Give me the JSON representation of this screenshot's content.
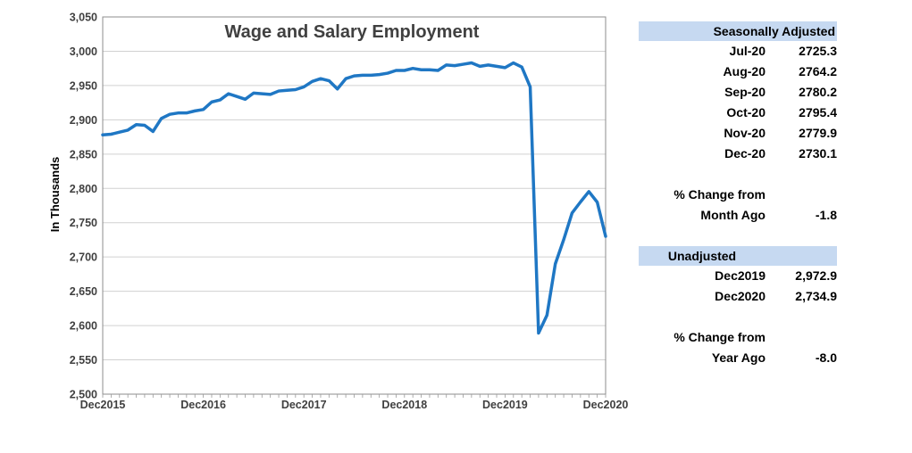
{
  "chart_data": {
    "type": "line",
    "title": "Wage and Salary Employment",
    "ylabel": "In Thousands",
    "xlabel": "",
    "ylim": [
      2500,
      3050
    ],
    "yticks": [
      2500,
      2550,
      2600,
      2650,
      2700,
      2750,
      2800,
      2850,
      2900,
      2950,
      3000,
      3050
    ],
    "ytick_labels": [
      "2,500",
      "2,550",
      "2,600",
      "2,650",
      "2,700",
      "2,750",
      "2,800",
      "2,850",
      "2,900",
      "2,950",
      "3,000",
      "3,050"
    ],
    "xtick_labels": [
      "Dec2015",
      "Dec2016",
      "Dec2017",
      "Dec2018",
      "Dec2019",
      "Dec2020"
    ],
    "grid": true,
    "color": "#1f77c4",
    "series": [
      {
        "x_start": "Dec2015",
        "x_end": "Dec2020",
        "values": [
          2878,
          2879,
          2882,
          2885,
          2893,
          2892,
          2883,
          2902,
          2908,
          2910,
          2910,
          2913,
          2915,
          2926,
          2929,
          2938,
          2934,
          2930,
          2939,
          2938,
          2937,
          2942,
          2943,
          2944,
          2948,
          2956,
          2960,
          2957,
          2945,
          2960,
          2964,
          2965,
          2965,
          2966,
          2968,
          2972,
          2972,
          2975,
          2973,
          2973,
          2972,
          2980,
          2979,
          2981,
          2983,
          2978,
          2980,
          2978,
          2976,
          2983,
          2977,
          2948,
          2589,
          2615,
          2690,
          2725.3,
          2764.2,
          2780.2,
          2795.4,
          2779.9,
          2730.1
        ]
      }
    ]
  },
  "sidebar": {
    "sa_header": "Seasonally Adjusted",
    "sa_rows": [
      {
        "label": "Jul-20",
        "value": "2725.3"
      },
      {
        "label": "Aug-20",
        "value": "2764.2"
      },
      {
        "label": "Sep-20",
        "value": "2780.2"
      },
      {
        "label": "Oct-20",
        "value": "2795.4"
      },
      {
        "label": "Nov-20",
        "value": "2779.9"
      },
      {
        "label": "Dec-20",
        "value": "2730.1"
      }
    ],
    "pct_change_label": "% Change from",
    "month_ago_label": "Month Ago",
    "month_ago_value": "-1.8",
    "unadj_header": "Unadjusted",
    "unadj_rows": [
      {
        "label": "Dec2019",
        "value": "2,972.9"
      },
      {
        "label": "Dec2020",
        "value": "2,734.9"
      }
    ],
    "pct_change_label_2": "% Change from",
    "year_ago_label": "Year Ago",
    "year_ago_value": "-8.0"
  }
}
